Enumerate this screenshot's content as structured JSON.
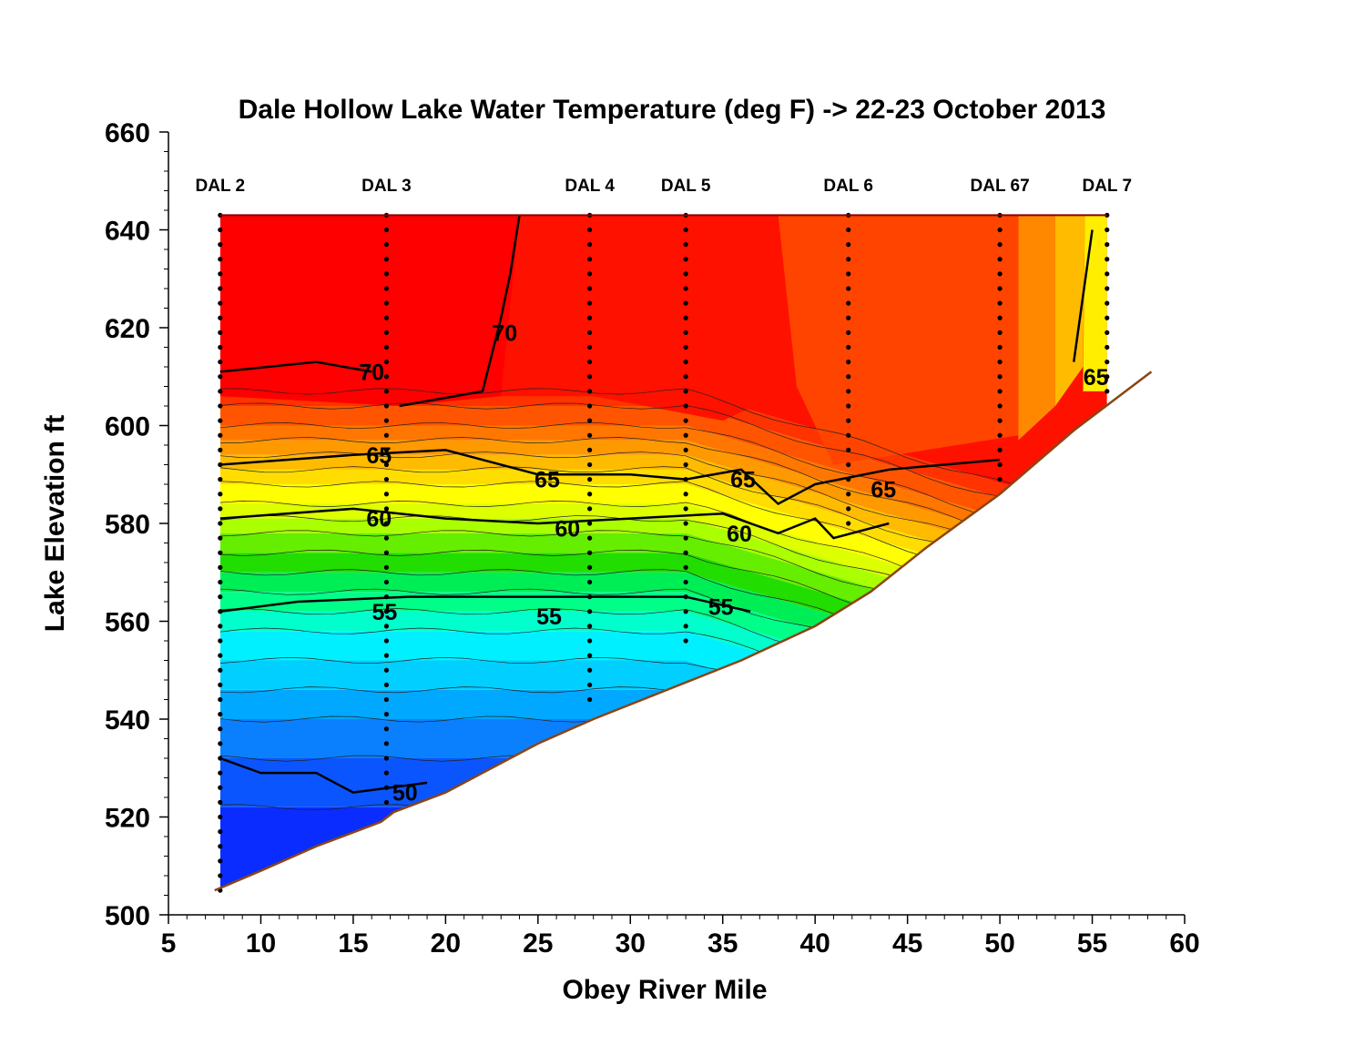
{
  "chart_data": {
    "type": "contour",
    "title": "Dale Hollow Lake Water Temperature (deg F)  ->  22-23 October 2013",
    "xlabel": "Obey River Mile",
    "ylabel": "Lake  Elevation  ft",
    "xlim": [
      5,
      60
    ],
    "ylim": [
      500,
      660
    ],
    "x_ticks": [
      5,
      10,
      15,
      20,
      25,
      30,
      35,
      40,
      45,
      50,
      55,
      60
    ],
    "y_ticks": [
      500,
      520,
      540,
      560,
      580,
      600,
      620,
      640,
      660
    ],
    "grid": false,
    "lake_surface_elevation": 643,
    "stations": [
      {
        "name": "DAL 2",
        "mile": 7.8,
        "bottom": 505
      },
      {
        "name": "DAL 3",
        "mile": 16.8,
        "bottom": 523
      },
      {
        "name": "DAL 4",
        "mile": 27.8,
        "bottom": 543
      },
      {
        "name": "DAL 5",
        "mile": 33.0,
        "bottom": 555
      },
      {
        "name": "DAL 6",
        "mile": 41.8,
        "bottom": 578
      },
      {
        "name": "DAL 67",
        "mile": 50.0,
        "bottom": 588
      },
      {
        "name": "DAL 7",
        "mile": 55.8,
        "bottom": 607
      }
    ],
    "bottom_profile": {
      "x": [
        7.5,
        10,
        13,
        16.5,
        17.2,
        20,
        25,
        28,
        32,
        36,
        40,
        43,
        46,
        50,
        54,
        58.2
      ],
      "y": [
        505,
        509,
        514,
        519,
        521,
        525,
        535,
        540,
        546,
        552,
        559,
        566,
        575,
        586,
        599,
        611
      ]
    },
    "isotherms": [
      {
        "label": "70",
        "x": [
          7.8,
          13,
          16
        ],
        "y": [
          611,
          613,
          611
        ]
      },
      {
        "label": "70",
        "x": [
          17.5,
          22,
          23,
          23.5,
          24
        ],
        "y": [
          604,
          607,
          622,
          631,
          643
        ]
      },
      {
        "label": "65",
        "x": [
          7.8,
          15,
          20,
          25,
          30,
          33,
          36,
          38,
          40,
          44,
          50
        ],
        "y": [
          592,
          594,
          595,
          590,
          590,
          589,
          591,
          584,
          588,
          591,
          593
        ]
      },
      {
        "label": "65",
        "x": [
          54,
          55
        ],
        "y": [
          613,
          640
        ]
      },
      {
        "label": "60",
        "x": [
          7.8,
          15,
          20,
          25,
          30,
          35,
          38,
          40,
          41,
          44
        ],
        "y": [
          581,
          583,
          581,
          580,
          581,
          582,
          578,
          581,
          577,
          580
        ]
      },
      {
        "label": "55",
        "x": [
          7.8,
          12,
          18,
          22,
          28,
          33,
          36.5
        ],
        "y": [
          562,
          564,
          565,
          565,
          565,
          565,
          562
        ]
      },
      {
        "label": "50",
        "x": [
          7.8,
          10,
          13,
          15,
          17,
          19
        ],
        "y": [
          532,
          529,
          529,
          525,
          526,
          527
        ]
      }
    ],
    "contour_labels": [
      {
        "text": "70",
        "x": 16,
        "y": 611
      },
      {
        "text": "70",
        "x": 23.2,
        "y": 619
      },
      {
        "text": "65",
        "x": 16.4,
        "y": 594
      },
      {
        "text": "65",
        "x": 25.5,
        "y": 589
      },
      {
        "text": "65",
        "x": 36.1,
        "y": 589
      },
      {
        "text": "65",
        "x": 43.7,
        "y": 587
      },
      {
        "text": "65",
        "x": 55.2,
        "y": 610
      },
      {
        "text": "60",
        "x": 16.4,
        "y": 581
      },
      {
        "text": "60",
        "x": 26.6,
        "y": 579
      },
      {
        "text": "60",
        "x": 35.9,
        "y": 578
      },
      {
        "text": "55",
        "x": 16.7,
        "y": 562
      },
      {
        "text": "55",
        "x": 25.6,
        "y": 561
      },
      {
        "text": "55",
        "x": 34.9,
        "y": 563
      },
      {
        "text": "50",
        "x": 17.8,
        "y": 525
      }
    ]
  }
}
